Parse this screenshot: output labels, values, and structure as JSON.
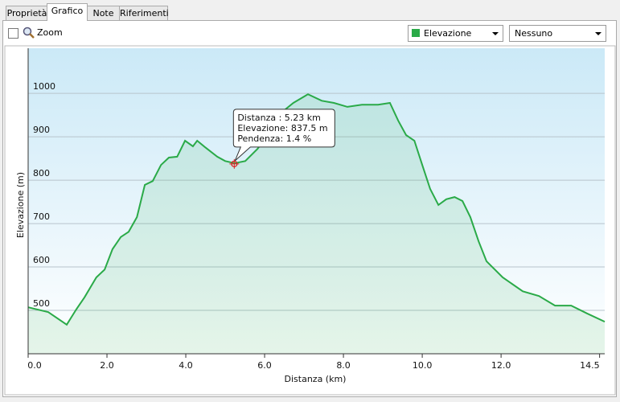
{
  "tabs": [
    "Proprietà",
    "Grafico",
    "Note",
    "Riferimenti"
  ],
  "active_tab": 1,
  "toolbar": {
    "zoom": "Zoom",
    "second_select": "Nessuno"
  },
  "chart_data": {
    "type": "line",
    "x_label": "Distanza  (km)",
    "y_label": "Elevazione (m)",
    "x": [
      0,
      0.51,
      0.98,
      1.22,
      1.43,
      1.73,
      1.94,
      2.14,
      2.35,
      2.55,
      2.76,
      2.96,
      3.16,
      3.37,
      3.57,
      3.78,
      3.98,
      4.18,
      4.29,
      4.49,
      4.8,
      5.0,
      5.24,
      5.51,
      5.82,
      6.12,
      6.43,
      6.73,
      7.1,
      7.45,
      7.76,
      8.1,
      8.47,
      8.88,
      9.18,
      9.39,
      9.59,
      9.8,
      10.0,
      10.2,
      10.41,
      10.61,
      10.82,
      11.02,
      11.22,
      11.43,
      11.63,
      12.04,
      12.55,
      12.96,
      13.37,
      13.78,
      14.18,
      14.63
    ],
    "series": [
      {
        "name": "Elevazione",
        "color": "#2aaa48",
        "values": [
          507,
          496,
          467,
          502,
          530,
          576,
          594,
          641,
          669,
          681,
          715,
          789,
          798,
          835,
          852,
          854,
          891,
          878,
          891,
          876,
          854,
          844,
          839,
          844,
          872,
          909,
          956,
          978,
          998,
          983,
          978,
          969,
          974,
          974,
          978,
          937,
          904,
          891,
          835,
          780,
          743,
          756,
          761,
          752,
          715,
          659,
          613,
          576,
          544,
          533,
          511,
          511,
          493,
          474
        ]
      }
    ],
    "xlim": [
      0,
      14.63
    ],
    "ylim": [
      400,
      1104
    ],
    "xticks": [
      {
        "value": 0,
        "label": "0.0"
      },
      {
        "value": 2,
        "label": "2.0"
      },
      {
        "value": 4,
        "label": "4.0"
      },
      {
        "value": 6,
        "label": "6.0"
      },
      {
        "value": 8,
        "label": "8.0"
      },
      {
        "value": 10,
        "label": "10.0"
      },
      {
        "value": 12,
        "label": "12.0"
      },
      14.5
    ],
    "yticks": [
      500,
      600,
      700,
      800,
      900,
      1000
    ],
    "grid": true,
    "cursor": {
      "x": 5.23,
      "y": 837.5
    },
    "tooltip": [
      "Distanza  : 5.23 km",
      "Elevazione: 837.5 m",
      "Pendenza: 1.4 %"
    ]
  }
}
